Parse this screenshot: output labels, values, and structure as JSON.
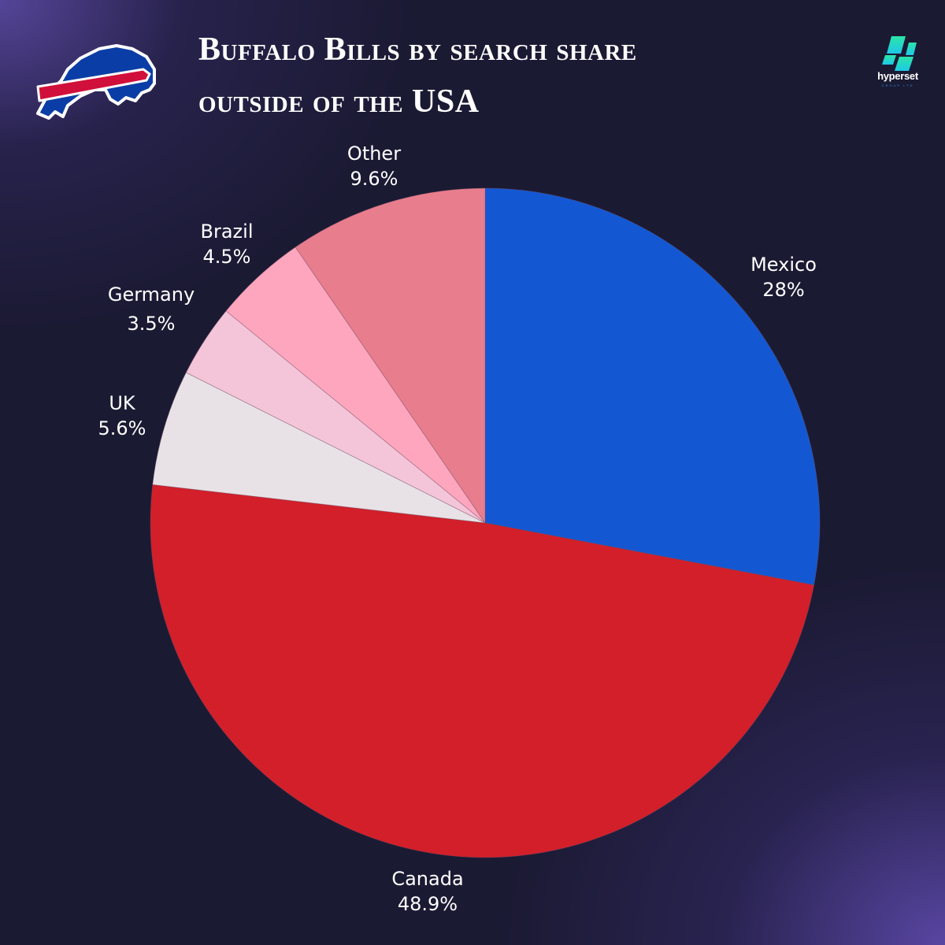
{
  "header": {
    "title_line1": "Buffalo Bills by search share",
    "title_line2": "outside of the USA",
    "team_logo": "buffalo-bills-logo-icon",
    "brand_logo": {
      "icon": "hyperset-logo-icon",
      "name": "hyperset",
      "subtitle": "GROUP LTD"
    }
  },
  "colors": {
    "background": "#1b1a33",
    "background_accent": "#5a48a8",
    "mexico": "#1358d2",
    "canada": "#d21f2a",
    "uk": "#e8e2e6",
    "germany": "#f4c4d8",
    "brazil": "#fea6be",
    "other": "#e87d8d",
    "label_text": "#ffffff"
  },
  "chart_data": {
    "type": "pie",
    "title": "Buffalo Bills by search share outside of the USA",
    "categories": [
      "Mexico",
      "Canada",
      "UK",
      "Germany",
      "Brazil",
      "Other"
    ],
    "values": [
      28,
      48.9,
      5.6,
      3.5,
      4.5,
      9.6
    ],
    "value_labels": [
      "28%",
      "48.9%",
      "5.6%",
      "3.5%",
      "4.5%",
      "9.6%"
    ],
    "unit": "%",
    "start_angle": "12 o'clock, clockwise",
    "legend": "none (labels placed outside slices)",
    "slice_colors": [
      "#1358d2",
      "#d21f2a",
      "#e8e2e6",
      "#f4c4d8",
      "#fea6be",
      "#e87d8d"
    ]
  },
  "labels": [
    {
      "name": "Mexico",
      "value": "28%"
    },
    {
      "name": "Canada",
      "value": "48.9%"
    },
    {
      "name": "UK",
      "value": "5.6%"
    },
    {
      "name": "Germany",
      "value": "3.5%"
    },
    {
      "name": "Brazil",
      "value": "4.5%"
    },
    {
      "name": "Other",
      "value": "9.6%"
    }
  ]
}
